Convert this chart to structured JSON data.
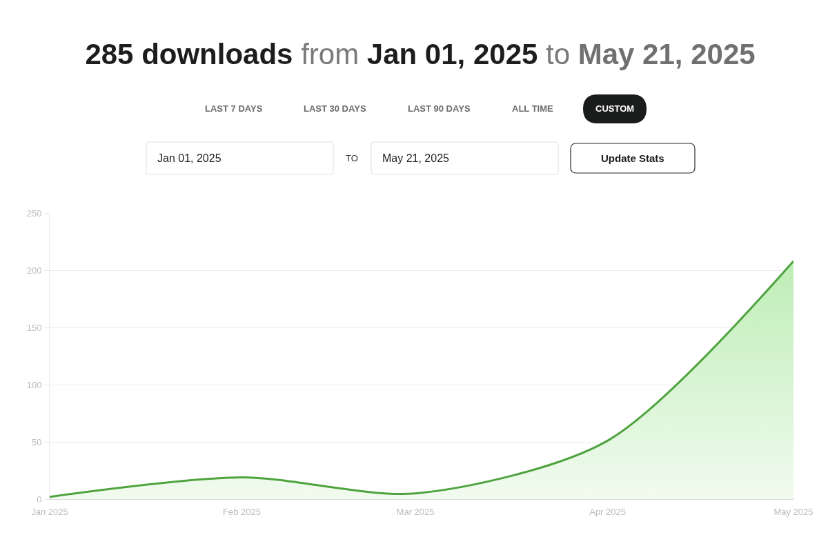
{
  "chart_data": {
    "type": "area",
    "title": "285 downloads from Jan 01, 2025 to May 21, 2025",
    "annotations": [
      "LAST 7 DAYS",
      "LAST 30 DAYS",
      "LAST 90 DAYS",
      "ALL TIME",
      "CUSTOM",
      "Jan 01, 2025",
      "TO",
      "May 21, 2025",
      "Update Stats"
    ],
    "x": [
      "2025-01",
      "2025-02",
      "2025-03",
      "2025-04",
      "2025-05"
    ],
    "series": [
      {
        "color": "#4fa33f",
        "values": [
          2,
          19,
          5,
          51,
          208
        ]
      }
    ],
    "xlim": [
      "2025-01",
      "2025-05"
    ],
    "xticks": [
      {
        "value": "2025-01",
        "label": "Jan 2025"
      },
      {
        "value": "2025-02",
        "label": "Feb 2025"
      },
      {
        "value": "2025-03",
        "label": "Mar 2025"
      },
      {
        "value": "2025-04",
        "label": "Apr 2025"
      },
      {
        "value": "2025-05",
        "label": "May 2025"
      }
    ],
    "ylim": [
      0,
      250
    ],
    "yticks": [
      0,
      50,
      100,
      150,
      200,
      250
    ],
    "grid": "y",
    "marker": "none"
  }
}
